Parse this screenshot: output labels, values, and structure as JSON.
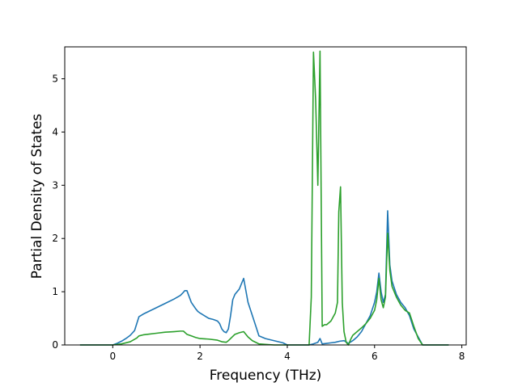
{
  "chart_data": {
    "type": "line",
    "title": "",
    "xlabel": "Frequency (THz)",
    "ylabel": "Partial Density of States",
    "xlim": [
      -1.1,
      8.1
    ],
    "ylim": [
      0,
      5.6
    ],
    "xticks": [
      0,
      2,
      4,
      6,
      8
    ],
    "yticks": [
      0,
      1,
      2,
      3,
      4,
      5
    ],
    "grid": false,
    "legend": "none",
    "series": [
      {
        "color": "#1f77b4",
        "x": [
          -0.75,
          0.0,
          0.1,
          0.2,
          0.3,
          0.4,
          0.5,
          0.55,
          0.6,
          0.7,
          0.8,
          1.0,
          1.2,
          1.4,
          1.55,
          1.62,
          1.65,
          1.7,
          1.8,
          1.9,
          1.95,
          2.0,
          2.2,
          2.3,
          2.4,
          2.45,
          2.5,
          2.55,
          2.6,
          2.65,
          2.7,
          2.75,
          2.8,
          2.9,
          2.95,
          3.0,
          3.1,
          3.2,
          3.3,
          3.35,
          3.5,
          3.7,
          3.9,
          4.0,
          4.1,
          4.3,
          4.5,
          4.6,
          4.7,
          4.75,
          4.8,
          4.9,
          5.0,
          5.1,
          5.2,
          5.3,
          5.4,
          5.5,
          5.6,
          5.7,
          5.8,
          5.9,
          6.0,
          6.05,
          6.1,
          6.15,
          6.2,
          6.25,
          6.3,
          6.35,
          6.4,
          6.5,
          6.6,
          6.7,
          6.8,
          6.9,
          7.0,
          7.1,
          7.2,
          7.3,
          7.7
        ],
        "y": [
          0.0,
          0.0,
          0.03,
          0.07,
          0.12,
          0.18,
          0.27,
          0.4,
          0.53,
          0.58,
          0.62,
          0.7,
          0.78,
          0.86,
          0.93,
          0.99,
          1.02,
          1.02,
          0.8,
          0.68,
          0.63,
          0.6,
          0.5,
          0.48,
          0.45,
          0.4,
          0.3,
          0.25,
          0.23,
          0.3,
          0.55,
          0.85,
          0.95,
          1.05,
          1.15,
          1.25,
          0.8,
          0.55,
          0.3,
          0.17,
          0.12,
          0.08,
          0.04,
          0.0,
          0.0,
          0.0,
          0.0,
          0.02,
          0.05,
          0.12,
          0.02,
          0.03,
          0.04,
          0.05,
          0.07,
          0.08,
          0.03,
          0.08,
          0.15,
          0.25,
          0.4,
          0.55,
          0.8,
          1.0,
          1.35,
          1.0,
          0.8,
          0.95,
          2.52,
          1.5,
          1.2,
          0.95,
          0.8,
          0.7,
          0.55,
          0.3,
          0.15,
          0.0,
          0.0,
          0.0,
          0.0
        ]
      },
      {
        "color": "#2ca02c",
        "x": [
          -0.75,
          0.0,
          0.2,
          0.4,
          0.55,
          0.6,
          0.7,
          0.8,
          1.0,
          1.2,
          1.4,
          1.55,
          1.62,
          1.7,
          1.8,
          1.9,
          2.0,
          2.2,
          2.4,
          2.5,
          2.6,
          2.65,
          2.7,
          2.8,
          2.9,
          3.0,
          3.1,
          3.2,
          3.3,
          3.35,
          3.5,
          3.7,
          3.9,
          4.0,
          4.1,
          4.3,
          4.5,
          4.55,
          4.6,
          4.65,
          4.7,
          4.75,
          4.8,
          4.85,
          4.9,
          5.0,
          5.1,
          5.15,
          5.18,
          5.22,
          5.26,
          5.3,
          5.35,
          5.4,
          5.45,
          5.5,
          5.6,
          5.7,
          5.8,
          5.9,
          6.0,
          6.05,
          6.1,
          6.15,
          6.2,
          6.25,
          6.3,
          6.35,
          6.4,
          6.5,
          6.6,
          6.7,
          6.8,
          6.9,
          7.0,
          7.1,
          7.2,
          7.3,
          7.7
        ],
        "y": [
          0.0,
          0.0,
          0.02,
          0.06,
          0.13,
          0.17,
          0.19,
          0.2,
          0.22,
          0.24,
          0.25,
          0.26,
          0.26,
          0.2,
          0.17,
          0.14,
          0.12,
          0.11,
          0.09,
          0.06,
          0.05,
          0.08,
          0.12,
          0.2,
          0.23,
          0.25,
          0.15,
          0.08,
          0.04,
          0.02,
          0.01,
          0.0,
          0.0,
          0.0,
          0.0,
          0.0,
          0.0,
          0.9,
          5.5,
          4.6,
          3.0,
          5.52,
          0.35,
          0.38,
          0.38,
          0.45,
          0.6,
          0.8,
          2.5,
          2.97,
          0.8,
          0.25,
          0.05,
          0.0,
          0.1,
          0.18,
          0.25,
          0.32,
          0.4,
          0.5,
          0.65,
          0.85,
          1.25,
          0.85,
          0.7,
          0.9,
          2.1,
          1.4,
          1.1,
          0.9,
          0.75,
          0.65,
          0.6,
          0.35,
          0.12,
          0.0,
          0.0,
          0.0,
          0.0
        ]
      }
    ]
  }
}
